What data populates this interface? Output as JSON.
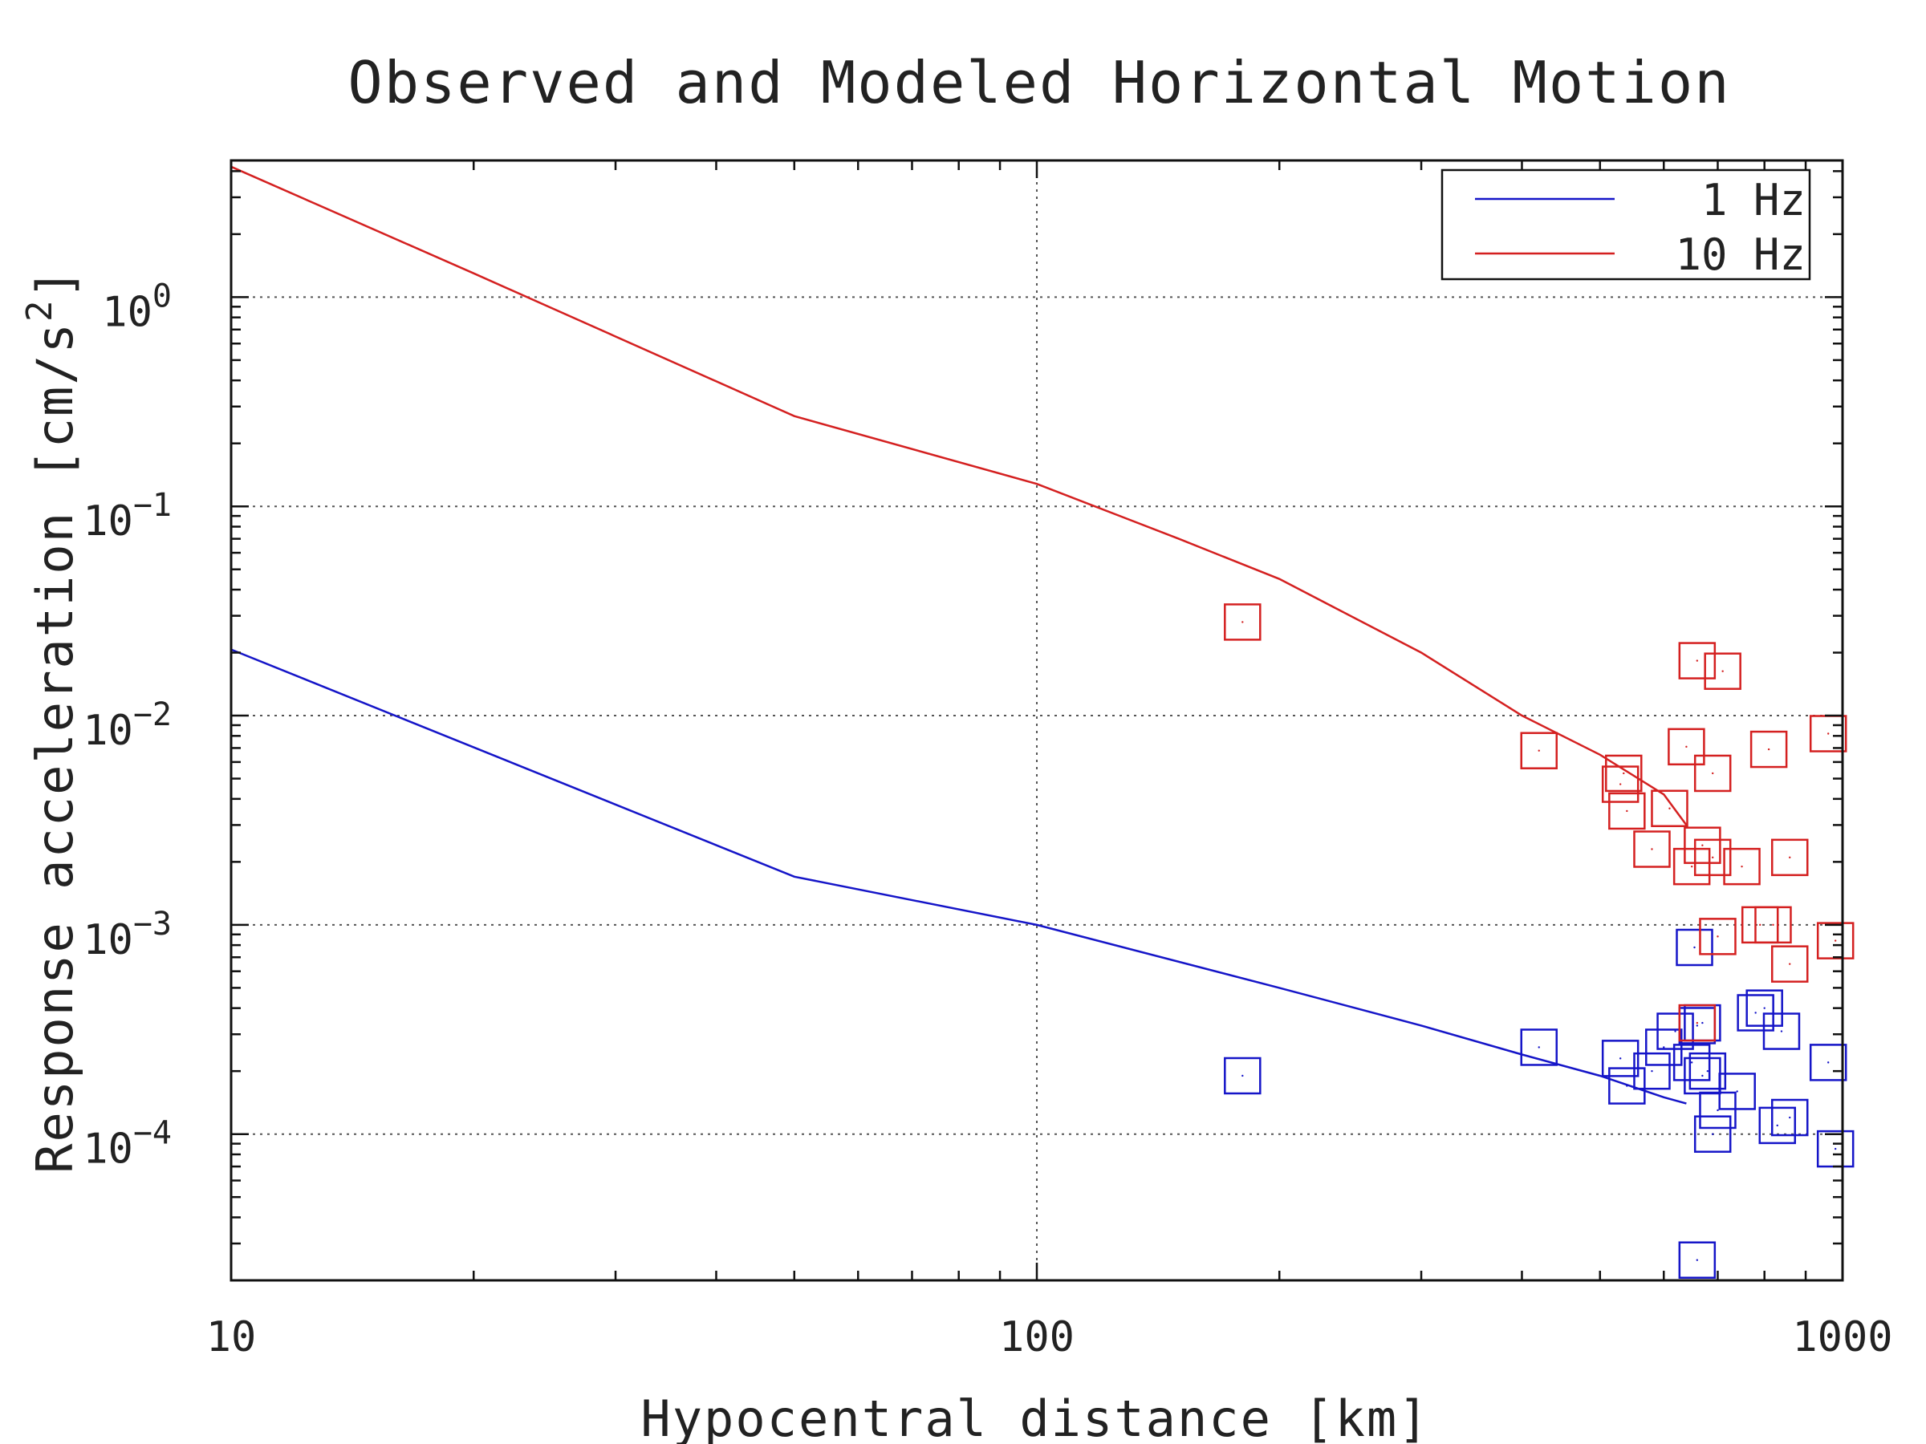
{
  "chart_data": {
    "type": "scatter",
    "title": "Observed and Modeled Horizontal Motion",
    "xlabel": "Hypocentral distance [km]",
    "ylabel_base": "Response acceleration [cm/s",
    "ylabel_exp": "2",
    "ylabel_close": "]",
    "xscale": "log",
    "yscale": "log",
    "xlim": [
      10,
      1000
    ],
    "ylim": [
      2e-05,
      4.5
    ],
    "grid": true,
    "legend_position": "top-right",
    "x_ticks": [
      {
        "value": 10,
        "label": "10"
      },
      {
        "value": 100,
        "label": "100"
      },
      {
        "value": 1000,
        "label": "1000"
      }
    ],
    "y_ticks": [
      {
        "value": 1,
        "base": "10",
        "exp": "0"
      },
      {
        "value": 0.1,
        "base": "10",
        "exp": "−1"
      },
      {
        "value": 0.01,
        "base": "10",
        "exp": "−2"
      },
      {
        "value": 0.001,
        "base": "10",
        "exp": "−3"
      },
      {
        "value": 0.0001,
        "base": "10",
        "exp": "−4"
      }
    ],
    "series": [
      {
        "name": "1 Hz",
        "color": "#1515c8",
        "line": [
          [
            10,
            0.0207
          ],
          [
            50,
            0.0017
          ],
          [
            100,
            0.001
          ],
          [
            200,
            0.0005
          ],
          [
            300,
            0.00033
          ],
          [
            400,
            0.00024
          ],
          [
            500,
            0.00019
          ],
          [
            600,
            0.00015
          ],
          [
            640,
            0.00014
          ]
        ],
        "points": [
          [
            180,
            0.00019
          ],
          [
            420,
            0.00026
          ],
          [
            530,
            0.00023
          ],
          [
            540,
            0.00017
          ],
          [
            580,
            0.0002
          ],
          [
            600,
            0.00026
          ],
          [
            620,
            0.00031
          ],
          [
            650,
            0.00022
          ],
          [
            660,
            0.00033
          ],
          [
            670,
            0.00019
          ],
          [
            680,
            0.0002
          ],
          [
            655,
            0.00078
          ],
          [
            670,
            0.00034
          ],
          [
            700,
            0.00013
          ],
          [
            690,
            0.0001
          ],
          [
            740,
            0.00016
          ],
          [
            780,
            0.00038
          ],
          [
            800,
            0.0004
          ],
          [
            830,
            0.00011
          ],
          [
            860,
            0.00012
          ],
          [
            840,
            0.00031
          ],
          [
            960,
            0.00022
          ],
          [
            980,
            8.5e-05
          ],
          [
            660,
            2.5e-05
          ]
        ]
      },
      {
        "name": "10 Hz",
        "color": "#d42020",
        "line": [
          [
            10,
            4.2
          ],
          [
            20,
            1.3
          ],
          [
            50,
            0.27
          ],
          [
            100,
            0.128
          ],
          [
            150,
            0.07
          ],
          [
            200,
            0.045
          ],
          [
            300,
            0.02
          ],
          [
            400,
            0.01
          ],
          [
            500,
            0.0065
          ],
          [
            600,
            0.0042
          ],
          [
            640,
            0.003
          ]
        ],
        "points": [
          [
            180,
            0.028
          ],
          [
            420,
            0.0068
          ],
          [
            530,
            0.0047
          ],
          [
            540,
            0.0035
          ],
          [
            535,
            0.0053
          ],
          [
            580,
            0.0023
          ],
          [
            610,
            0.0036
          ],
          [
            640,
            0.0071
          ],
          [
            650,
            0.0019
          ],
          [
            670,
            0.0024
          ],
          [
            690,
            0.0021
          ],
          [
            660,
            0.0183
          ],
          [
            690,
            0.0053
          ],
          [
            700,
            0.00088
          ],
          [
            710,
            0.0163
          ],
          [
            750,
            0.0019
          ],
          [
            790,
            0.001
          ],
          [
            820,
            0.001
          ],
          [
            810,
            0.0069
          ],
          [
            860,
            0.0021
          ],
          [
            860,
            0.00065
          ],
          [
            960,
            0.0082
          ],
          [
            980,
            0.00084
          ],
          [
            660,
            0.00034
          ]
        ]
      }
    ]
  }
}
